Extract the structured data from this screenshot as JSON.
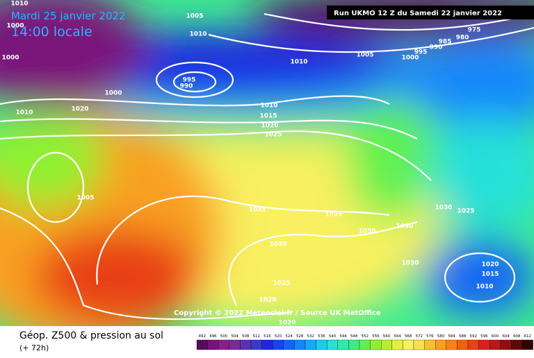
{
  "header": {
    "date": "Mardi 25 janvier 2022",
    "time": "14:00 locale",
    "run": "Run UKMO 12 Z du Samedi 22 janvier 2022"
  },
  "copyright": "Copyright © 2022 Meteociel.fr / Source UK MetOffice",
  "legend": {
    "title": "Géop. Z500 & pression au sol",
    "lead": "(+ 72h)",
    "ticks": [
      492,
      496,
      500,
      504,
      508,
      512,
      516,
      520,
      524,
      528,
      532,
      536,
      540,
      544,
      548,
      552,
      556,
      560,
      564,
      568,
      572,
      576,
      580,
      584,
      588,
      592,
      596,
      600,
      604,
      608,
      612
    ],
    "colors": [
      "#5a0a5a",
      "#7a127a",
      "#8a1e8e",
      "#7a2a9e",
      "#5a32b0",
      "#3a3ac8",
      "#1e28e0",
      "#1446f0",
      "#1464f8",
      "#1488fa",
      "#14aaf8",
      "#1ccaf0",
      "#28e0d8",
      "#30e8b0",
      "#40ec80",
      "#60f050",
      "#90f030",
      "#b8f030",
      "#e0f040",
      "#f8f060",
      "#f8e050",
      "#f8c030",
      "#f8a020",
      "#f88018",
      "#f06010",
      "#e84018",
      "#d82020",
      "#b81818",
      "#901010",
      "#600808",
      "#300000"
    ]
  },
  "isobar_labels": [
    "1005",
    "1000",
    "1010",
    "1000",
    "1020",
    "1010",
    "1005",
    "1010",
    "1000",
    "995",
    "990",
    "1010",
    "1005",
    "1000",
    "995",
    "990",
    "985",
    "980",
    "975",
    "1010",
    "1015",
    "1020",
    "1025",
    "1035",
    "1035",
    "1030",
    "1030",
    "1030",
    "1030",
    "1025",
    "1030",
    "1025",
    "1020",
    "1020",
    "1020",
    "1015",
    "1010"
  ]
}
